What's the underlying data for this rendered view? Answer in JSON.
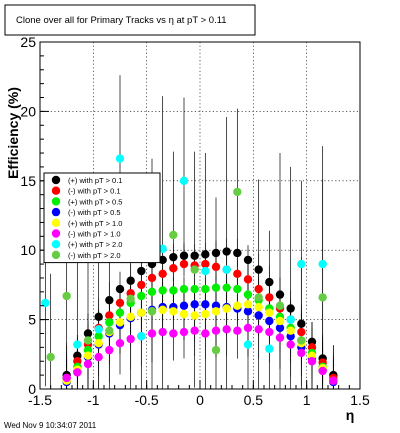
{
  "chart_data": {
    "type": "scatter",
    "title": "Clone  over all for Primary Tracks vs    η at pT > 0.11",
    "xlabel": "η",
    "ylabel": "Efficiency (%)",
    "xlim": [
      -1.5,
      1.5
    ],
    "ylim": [
      0,
      25
    ],
    "xticks": [
      "-1.5",
      "-1",
      "-0.5",
      "0",
      "0.5",
      "1",
      "1.5"
    ],
    "yticks": [
      "0",
      "5",
      "10",
      "15",
      "20",
      "25"
    ],
    "grid": true,
    "legend_position": "upper-left",
    "legend": [
      {
        "label": "(+) with pT > 0.1",
        "color": "#000000"
      },
      {
        "label": "(-) with pT > 0.1",
        "color": "#ff0000"
      },
      {
        "label": "(+) with pT > 0.5",
        "color": "#00ee00"
      },
      {
        "label": "(-) with pT > 0.5",
        "color": "#0000ff"
      },
      {
        "label": "(+) with pT > 1.0",
        "color": "#ffff00"
      },
      {
        "label": "(-) with pT > 1.0",
        "color": "#ff00ff"
      },
      {
        "label": "(+) with pT > 2.0",
        "color": "#00ffff"
      },
      {
        "label": "(-) with pT > 2.0",
        "color": "#66cc44"
      }
    ],
    "series": [
      {
        "name": "(+) with pT > 0.1",
        "color": "#000000",
        "x": [
          -1.25,
          -1.15,
          -1.05,
          -0.95,
          -0.85,
          -0.75,
          -0.65,
          -0.55,
          -0.45,
          -0.35,
          -0.25,
          -0.15,
          -0.05,
          0.05,
          0.15,
          0.25,
          0.35,
          0.45,
          0.55,
          0.65,
          0.75,
          0.85,
          0.95,
          1.05,
          1.15,
          1.25
        ],
        "y": [
          1.0,
          2.4,
          4.0,
          5.2,
          6.4,
          7.2,
          7.8,
          8.5,
          9.0,
          9.3,
          9.5,
          9.6,
          9.6,
          9.7,
          9.8,
          9.9,
          9.8,
          9.3,
          8.6,
          7.7,
          6.8,
          5.8,
          4.7,
          3.4,
          2.2,
          1.0
        ]
      },
      {
        "name": "(-) with pT > 0.1",
        "color": "#ff0000",
        "x": [
          -1.25,
          -1.15,
          -1.05,
          -0.95,
          -0.85,
          -0.75,
          -0.65,
          -0.55,
          -0.45,
          -0.35,
          -0.25,
          -0.15,
          -0.05,
          0.05,
          0.15,
          0.25,
          0.35,
          0.45,
          0.55,
          0.65,
          0.75,
          0.85,
          0.95,
          1.05,
          1.15,
          1.25
        ],
        "y": [
          0.8,
          2.0,
          3.2,
          4.4,
          5.3,
          6.2,
          6.9,
          7.5,
          8.0,
          8.3,
          8.7,
          9.0,
          8.9,
          9.0,
          8.8,
          8.6,
          8.3,
          7.9,
          7.2,
          6.6,
          5.8,
          5.0,
          4.1,
          3.0,
          1.9,
          0.8
        ]
      },
      {
        "name": "(+) with pT > 0.5",
        "color": "#00ee00",
        "x": [
          -1.25,
          -1.15,
          -1.05,
          -0.95,
          -0.85,
          -0.75,
          -0.65,
          -0.55,
          -0.45,
          -0.35,
          -0.25,
          -0.15,
          -0.05,
          0.05,
          0.15,
          0.25,
          0.35,
          0.45,
          0.55,
          0.65,
          0.75,
          0.85,
          0.95,
          1.05,
          1.15,
          1.25
        ],
        "y": [
          0.6,
          1.6,
          2.8,
          3.8,
          4.8,
          5.5,
          6.2,
          6.7,
          7.0,
          7.1,
          7.1,
          7.2,
          7.2,
          7.2,
          7.3,
          7.3,
          7.2,
          6.8,
          6.4,
          5.8,
          5.2,
          4.4,
          3.5,
          2.6,
          1.6,
          0.6
        ]
      },
      {
        "name": "(-) with pT > 0.5",
        "color": "#0000ff",
        "x": [
          -1.25,
          -1.15,
          -1.05,
          -0.95,
          -0.85,
          -0.75,
          -0.65,
          -0.55,
          -0.45,
          -0.35,
          -0.25,
          -0.15,
          -0.05,
          0.05,
          0.15,
          0.25,
          0.35,
          0.45,
          0.55,
          0.65,
          0.75,
          0.85,
          0.95,
          1.05,
          1.15,
          1.25
        ],
        "y": [
          0.5,
          1.3,
          2.3,
          3.2,
          4.0,
          4.6,
          5.1,
          5.5,
          5.7,
          5.9,
          5.9,
          6.0,
          6.1,
          6.1,
          6.0,
          5.9,
          5.8,
          5.6,
          5.3,
          4.9,
          4.4,
          3.8,
          3.0,
          2.2,
          1.4,
          0.5
        ]
      },
      {
        "name": "(+) with pT > 1.0",
        "color": "#ffff00",
        "x": [
          -1.25,
          -1.15,
          -1.05,
          -0.95,
          -0.85,
          -0.75,
          -0.65,
          -0.55,
          -0.45,
          -0.35,
          -0.25,
          -0.15,
          -0.05,
          0.05,
          0.15,
          0.25,
          0.35,
          0.45,
          0.55,
          0.65,
          0.75,
          0.85,
          0.95,
          1.05,
          1.15,
          1.25
        ],
        "y": [
          0.6,
          1.4,
          2.4,
          3.3,
          4.1,
          4.8,
          5.2,
          5.5,
          5.6,
          5.7,
          5.6,
          5.4,
          5.3,
          5.4,
          5.6,
          5.8,
          6.0,
          6.1,
          5.9,
          5.5,
          4.9,
          4.2,
          3.3,
          2.4,
          1.5,
          0.6
        ]
      },
      {
        "name": "(-) with pT > 1.0",
        "color": "#ff00ff",
        "x": [
          -1.25,
          -1.15,
          -1.05,
          -0.95,
          -0.85,
          -0.75,
          -0.65,
          -0.55,
          -0.45,
          -0.35,
          -0.25,
          -0.15,
          -0.05,
          0.05,
          0.15,
          0.25,
          0.35,
          0.45,
          0.55,
          0.65,
          0.75,
          0.85,
          0.95,
          1.05,
          1.15,
          1.25
        ],
        "y": [
          0.8,
          1.2,
          1.8,
          2.3,
          2.8,
          3.3,
          3.6,
          3.8,
          4.0,
          4.1,
          4.0,
          4.1,
          4.2,
          4.0,
          4.2,
          4.3,
          4.2,
          4.4,
          4.3,
          4.1,
          3.7,
          3.2,
          2.6,
          2.0,
          1.3,
          0.6
        ]
      },
      {
        "name": "(+) with pT > 2.0",
        "color": "#00ffff",
        "x": [
          -1.45,
          -1.15,
          -0.95,
          -0.75,
          -0.55,
          -0.35,
          -0.15,
          0.05,
          0.25,
          0.45,
          0.65,
          0.85,
          0.95,
          1.15
        ],
        "y": [
          6.2,
          3.2,
          4.3,
          16.6,
          3.8,
          10.1,
          15.0,
          8.5,
          8.6,
          3.2,
          2.9,
          5.0,
          9.0,
          9.0
        ]
      },
      {
        "name": "(-) with pT > 2.0",
        "color": "#66cc44",
        "x": [
          -1.4,
          -1.25,
          -1.05,
          -0.85,
          -0.65,
          -0.45,
          -0.25,
          -0.05,
          0.15,
          0.35,
          0.55,
          0.75,
          0.95,
          1.15
        ],
        "y": [
          2.3,
          6.7,
          3.5,
          4.2,
          6.5,
          5.6,
          11.1,
          8.6,
          2.8,
          14.2,
          6.6,
          6.0,
          3.5,
          6.6
        ]
      }
    ]
  },
  "footer": {
    "timestamp": "Wed Nov  9 10:34:07 2011"
  }
}
